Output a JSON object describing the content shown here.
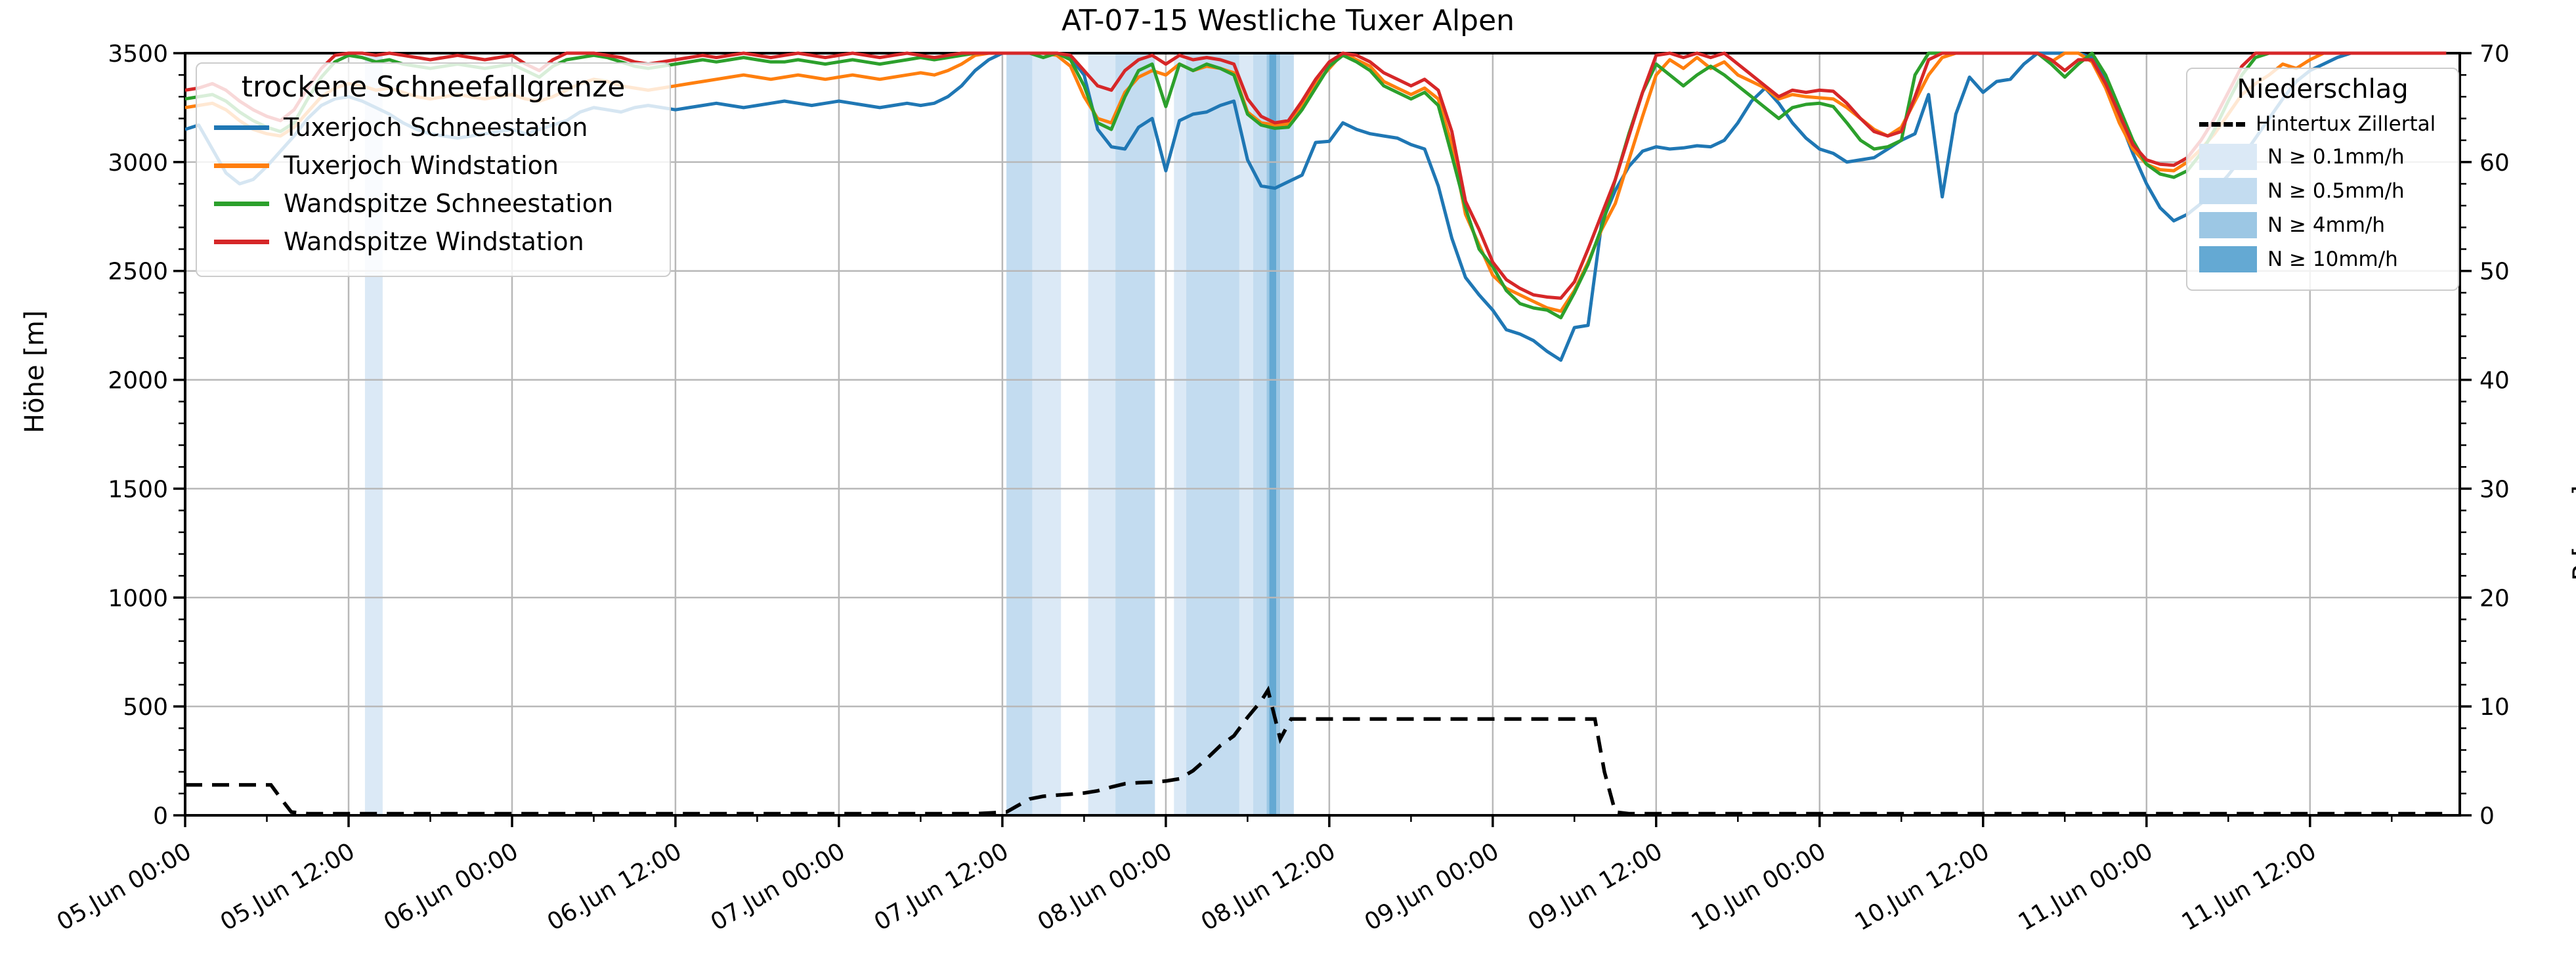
{
  "title": "AT-07-15 Westliche Tuxer Alpen",
  "axes": {
    "y_left_label": "Höhe [m]",
    "y_right_label": "P [mm]",
    "y_left_ticks": [
      0,
      500,
      1000,
      1500,
      2000,
      2500,
      3000,
      3500
    ],
    "y_right_ticks": [
      0,
      10,
      20,
      30,
      40,
      50,
      60,
      70
    ],
    "x_tick_hours": [
      0,
      12,
      24,
      36,
      48,
      60,
      72,
      84,
      96,
      108,
      120,
      132,
      144,
      156
    ],
    "x_tick_labels": [
      "05.Jun 00:00",
      "05.Jun 12:00",
      "06.Jun 00:00",
      "06.Jun 12:00",
      "07.Jun 00:00",
      "07.Jun 12:00",
      "08.Jun 00:00",
      "08.Jun 12:00",
      "09.Jun 00:00",
      "09.Jun 12:00",
      "10.Jun 00:00",
      "10.Jun 12:00",
      "11.Jun 00:00",
      "11.Jun 12:00"
    ]
  },
  "legend_snowline": {
    "title": "trockene Schneefallgrenze",
    "items": [
      {
        "label": "Tuxerjoch Schneestation",
        "color": "#1f77b4"
      },
      {
        "label": "Tuxerjoch Windstation",
        "color": "#ff7f0e"
      },
      {
        "label": "Wandspitze Schneestation",
        "color": "#2ca02c"
      },
      {
        "label": "Wandspitze Windstation",
        "color": "#d62728"
      }
    ]
  },
  "legend_precip": {
    "title": "Niederschlag",
    "line_item": {
      "label": "Hintertux Zillertal",
      "color": "#000000"
    },
    "levels": [
      {
        "label": "N ≥ 0.1mm/h",
        "color": "#dbe9f6"
      },
      {
        "label": "N ≥ 0.5mm/h",
        "color": "#c3dcf0"
      },
      {
        "label": "N ≥ 4mm/h",
        "color": "#9cc7e4"
      },
      {
        "label": "N ≥ 10mm/h",
        "color": "#64a9d3"
      }
    ]
  },
  "chart_data": {
    "type": "line",
    "title": "AT-07-15 Westliche Tuxer Alpen",
    "x_unit": "hours since 05.Jun 00:00",
    "x_range": [
      0,
      167
    ],
    "y_left_label": "Höhe [m]",
    "y_left_range": [
      0,
      3500
    ],
    "y_right_label": "P [mm]",
    "y_right_range": [
      0,
      70
    ],
    "grid": true,
    "clip_max_m": 3500,
    "series": [
      {
        "name": "Tuxerjoch Schneestation",
        "color": "#1f77b4",
        "axis": "left",
        "values": [
          3150,
          3170,
          3060,
          2950,
          2900,
          2920,
          2980,
          3050,
          3120,
          3200,
          3260,
          3290,
          3300,
          3280,
          3250,
          3220,
          3180,
          3150,
          3130,
          3120,
          3110,
          3120,
          3130,
          3140,
          3150,
          3130,
          3150,
          3170,
          3190,
          3230,
          3250,
          3240,
          3230,
          3250,
          3260,
          3250,
          3240,
          3250,
          3260,
          3270,
          3260,
          3250,
          3260,
          3270,
          3280,
          3270,
          3260,
          3270,
          3280,
          3270,
          3260,
          3250,
          3260,
          3270,
          3260,
          3270,
          3300,
          3350,
          3420,
          3470,
          3500,
          3510,
          3520,
          3515,
          3505,
          3480,
          3400,
          3150,
          3070,
          3060,
          3160,
          3200,
          2960,
          3190,
          3220,
          3230,
          3260,
          3280,
          3010,
          2890,
          2880,
          2910,
          2940,
          3090,
          3095,
          3180,
          3150,
          3130,
          3120,
          3110,
          3080,
          3060,
          2890,
          2650,
          2470,
          2390,
          2320,
          2230,
          2210,
          2180,
          2130,
          2090,
          2240,
          2250,
          2720,
          2870,
          2980,
          3050,
          3070,
          3060,
          3065,
          3075,
          3070,
          3100,
          3180,
          3280,
          3340,
          3270,
          3180,
          3110,
          3060,
          3040,
          3000,
          3010,
          3020,
          3060,
          3100,
          3130,
          3310,
          2840,
          3220,
          3390,
          3320,
          3370,
          3380,
          3450,
          3510,
          3520,
          3515,
          3505,
          3480,
          3380,
          3200,
          3040,
          2900,
          2790,
          2730,
          2760,
          2810,
          2870,
          2940,
          3020,
          3110,
          3200,
          3290,
          3370,
          3420,
          3450,
          3480,
          3510,
          3520,
          3515,
          3510,
          3515,
          3520,
          3515,
          3510
        ]
      },
      {
        "name": "Tuxerjoch Windstation",
        "color": "#ff7f0e",
        "axis": "left",
        "values": [
          3250,
          3260,
          3270,
          3240,
          3190,
          3150,
          3130,
          3120,
          3160,
          3230,
          3300,
          3340,
          3360,
          3350,
          3330,
          3340,
          3320,
          3300,
          3290,
          3300,
          3310,
          3300,
          3290,
          3300,
          3310,
          3290,
          3280,
          3300,
          3330,
          3360,
          3380,
          3370,
          3350,
          3340,
          3330,
          3340,
          3350,
          3360,
          3370,
          3380,
          3390,
          3400,
          3390,
          3380,
          3390,
          3400,
          3390,
          3380,
          3390,
          3400,
          3390,
          3380,
          3390,
          3400,
          3410,
          3400,
          3420,
          3450,
          3490,
          3510,
          3520,
          3515,
          3510,
          3505,
          3490,
          3440,
          3300,
          3200,
          3180,
          3320,
          3390,
          3420,
          3400,
          3450,
          3420,
          3440,
          3430,
          3410,
          3230,
          3180,
          3170,
          3175,
          3260,
          3360,
          3430,
          3500,
          3470,
          3440,
          3370,
          3340,
          3310,
          3340,
          3290,
          3080,
          2760,
          2620,
          2480,
          2420,
          2390,
          2360,
          2330,
          2315,
          2410,
          2540,
          2690,
          2810,
          3010,
          3210,
          3400,
          3470,
          3430,
          3480,
          3430,
          3460,
          3400,
          3370,
          3340,
          3290,
          3310,
          3300,
          3295,
          3290,
          3250,
          3200,
          3150,
          3120,
          3160,
          3280,
          3400,
          3480,
          3510,
          3520,
          3515,
          3510,
          3505,
          3510,
          3505,
          3460,
          3505,
          3510,
          3460,
          3340,
          3180,
          3060,
          2990,
          2965,
          2960,
          3000,
          3060,
          3130,
          3220,
          3310,
          3360,
          3400,
          3450,
          3430,
          3470,
          3505,
          3510,
          3515,
          3520,
          3515,
          3510,
          3515,
          3520,
          3515,
          3510
        ]
      },
      {
        "name": "Wandspitze Schneestation",
        "color": "#2ca02c",
        "axis": "left",
        "values": [
          3290,
          3300,
          3310,
          3280,
          3230,
          3190,
          3160,
          3140,
          3180,
          3290,
          3390,
          3460,
          3490,
          3480,
          3460,
          3470,
          3450,
          3440,
          3430,
          3440,
          3450,
          3440,
          3430,
          3440,
          3450,
          3420,
          3390,
          3440,
          3470,
          3480,
          3490,
          3480,
          3460,
          3440,
          3430,
          3440,
          3450,
          3460,
          3470,
          3460,
          3470,
          3480,
          3470,
          3460,
          3460,
          3470,
          3460,
          3450,
          3460,
          3470,
          3460,
          3450,
          3460,
          3470,
          3480,
          3470,
          3480,
          3490,
          3500,
          3510,
          3520,
          3515,
          3505,
          3480,
          3500,
          3470,
          3350,
          3180,
          3150,
          3300,
          3420,
          3450,
          3255,
          3450,
          3420,
          3450,
          3430,
          3400,
          3220,
          3170,
          3155,
          3160,
          3240,
          3340,
          3440,
          3490,
          3460,
          3420,
          3350,
          3320,
          3290,
          3320,
          3260,
          3030,
          2790,
          2600,
          2520,
          2410,
          2350,
          2330,
          2320,
          2285,
          2400,
          2530,
          2700,
          2920,
          3130,
          3320,
          3450,
          3400,
          3350,
          3400,
          3440,
          3400,
          3350,
          3300,
          3250,
          3200,
          3250,
          3265,
          3270,
          3255,
          3180,
          3100,
          3060,
          3070,
          3100,
          3400,
          3510,
          3515,
          3520,
          3515,
          3510,
          3505,
          3510,
          3505,
          3500,
          3450,
          3390,
          3450,
          3500,
          3400,
          3250,
          3100,
          2990,
          2945,
          2930,
          2960,
          3040,
          3150,
          3280,
          3400,
          3480,
          3505,
          3510,
          3515,
          3510,
          3505,
          3510,
          3515,
          3520,
          3515,
          3510,
          3515,
          3520,
          3515,
          3510
        ]
      },
      {
        "name": "Wandspitze Windstation",
        "color": "#d62728",
        "axis": "left",
        "values": [
          3330,
          3340,
          3360,
          3330,
          3280,
          3240,
          3210,
          3190,
          3240,
          3340,
          3430,
          3490,
          3505,
          3500,
          3490,
          3505,
          3490,
          3480,
          3470,
          3480,
          3490,
          3480,
          3470,
          3480,
          3490,
          3450,
          3420,
          3470,
          3500,
          3505,
          3510,
          3490,
          3480,
          3460,
          3450,
          3460,
          3470,
          3480,
          3490,
          3480,
          3490,
          3500,
          3490,
          3480,
          3490,
          3500,
          3490,
          3480,
          3490,
          3500,
          3490,
          3480,
          3490,
          3500,
          3490,
          3480,
          3490,
          3500,
          3505,
          3510,
          3515,
          3510,
          3505,
          3500,
          3505,
          3490,
          3420,
          3350,
          3330,
          3420,
          3470,
          3490,
          3450,
          3490,
          3470,
          3480,
          3470,
          3450,
          3290,
          3210,
          3180,
          3190,
          3280,
          3380,
          3460,
          3500,
          3490,
          3460,
          3410,
          3380,
          3350,
          3380,
          3330,
          3140,
          2820,
          2690,
          2540,
          2460,
          2420,
          2390,
          2380,
          2375,
          2450,
          2600,
          2760,
          2920,
          3120,
          3320,
          3490,
          3505,
          3480,
          3500,
          3480,
          3500,
          3450,
          3400,
          3350,
          3300,
          3330,
          3320,
          3330,
          3325,
          3270,
          3200,
          3140,
          3120,
          3140,
          3300,
          3470,
          3505,
          3510,
          3515,
          3510,
          3505,
          3510,
          3505,
          3500,
          3470,
          3420,
          3470,
          3470,
          3360,
          3220,
          3080,
          3010,
          2990,
          2985,
          3020,
          3100,
          3200,
          3320,
          3440,
          3500,
          3505,
          3510,
          3515,
          3510,
          3505,
          3510,
          3515,
          3520,
          3515,
          3510,
          3515,
          3520,
          3515,
          3510
        ]
      }
    ],
    "precip_line": {
      "name": "Hintertux Zillertal",
      "color": "#000000",
      "axis": "right",
      "style": "dashed",
      "points": [
        [
          0,
          2.8
        ],
        [
          6.3,
          2.8
        ],
        [
          7,
          1.6
        ],
        [
          7.8,
          0.3
        ],
        [
          9,
          0.15
        ],
        [
          58,
          0.15
        ],
        [
          60.3,
          0.3
        ],
        [
          61,
          0.8
        ],
        [
          62,
          1.5
        ],
        [
          63,
          1.75
        ],
        [
          64,
          1.85
        ],
        [
          65,
          1.95
        ],
        [
          66,
          2.05
        ],
        [
          67,
          2.25
        ],
        [
          68,
          2.6
        ],
        [
          69,
          2.9
        ],
        [
          70,
          3.0
        ],
        [
          71,
          3.05
        ],
        [
          72,
          3.15
        ],
        [
          73,
          3.35
        ],
        [
          74,
          4.1
        ],
        [
          75,
          5.2
        ],
        [
          76,
          6.4
        ],
        [
          77,
          7.3
        ],
        [
          78,
          9.0
        ],
        [
          79,
          10.5
        ],
        [
          79.5,
          11.5
        ],
        [
          80.4,
          7.0
        ],
        [
          81.2,
          8.85
        ],
        [
          103.5,
          8.85
        ],
        [
          104.2,
          4.0
        ],
        [
          105,
          0.3
        ],
        [
          106,
          0.15
        ],
        [
          166,
          0.15
        ]
      ]
    },
    "precip_bands": [
      {
        "start_h": 13.2,
        "end_h": 14.5,
        "level": "0.1"
      },
      {
        "start_h": 60.3,
        "end_h": 62.2,
        "level": "0.5"
      },
      {
        "start_h": 62.2,
        "end_h": 64.3,
        "level": "0.1"
      },
      {
        "start_h": 66.3,
        "end_h": 68.3,
        "level": "0.1"
      },
      {
        "start_h": 68.3,
        "end_h": 71.2,
        "level": "0.5"
      },
      {
        "start_h": 72.6,
        "end_h": 73.5,
        "level": "0.1"
      },
      {
        "start_h": 73.5,
        "end_h": 77.4,
        "level": "0.5"
      },
      {
        "start_h": 77.4,
        "end_h": 78.4,
        "level": "0.1"
      },
      {
        "start_h": 78.4,
        "end_h": 79.4,
        "level": "0.5"
      },
      {
        "start_h": 79.4,
        "end_h": 80.4,
        "level": "4"
      },
      {
        "start_h": 79.6,
        "end_h": 80.1,
        "level": "10"
      },
      {
        "start_h": 80.4,
        "end_h": 81.4,
        "level": "0.5"
      }
    ],
    "band_level_colors": {
      "0.1": "#dbe9f6",
      "0.5": "#c3dcf0",
      "4": "#9cc7e4",
      "10": "#64a9d3"
    }
  }
}
